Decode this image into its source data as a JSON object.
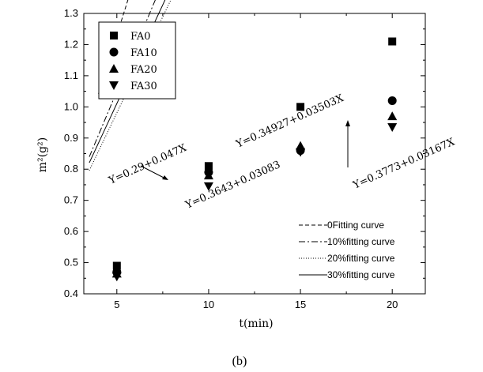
{
  "caption": "(b)",
  "chart_data": {
    "type": "scatter",
    "xlabel": "t(min)",
    "ylabel": "m²(g²)",
    "xlim": [
      3.2,
      21.8
    ],
    "ylim": [
      0.4,
      1.3
    ],
    "xticks": [
      5,
      10,
      15,
      20
    ],
    "xtick_labels": [
      "5",
      "10",
      "15",
      "20"
    ],
    "yticks": [
      0.4,
      0.5,
      0.6,
      0.7,
      0.8,
      0.9,
      1.0,
      1.1,
      1.2,
      1.3
    ],
    "ytick_labels": [
      "0.4",
      "0.5",
      "0.6",
      "0.7",
      "0.8",
      "0.9",
      "1.0",
      "1.1",
      "1.2",
      "1.3"
    ],
    "grid": false,
    "legend_position": "top-left",
    "series": [
      {
        "name": "FA0",
        "marker": "square",
        "x": [
          5,
          10,
          15,
          20
        ],
        "y": [
          0.49,
          0.81,
          1.0,
          1.21
        ]
      },
      {
        "name": "FA10",
        "marker": "circle",
        "x": [
          5,
          10,
          15,
          20
        ],
        "y": [
          0.47,
          0.79,
          0.86,
          1.02
        ]
      },
      {
        "name": "FA20",
        "marker": "triangle-up",
        "x": [
          5,
          10,
          15,
          20
        ],
        "y": [
          0.465,
          0.78,
          0.875,
          0.97
        ]
      },
      {
        "name": "FA30",
        "marker": "triangle-down",
        "x": [
          5,
          10,
          15,
          20
        ],
        "y": [
          0.455,
          0.745,
          0.855,
          0.935
        ]
      }
    ],
    "fits": [
      {
        "name": "0Fitting curve",
        "style": "dashed",
        "intercept": 0.29,
        "slope": 0.047
      },
      {
        "name": "10%fitting curve",
        "style": "dashdot",
        "intercept": 0.34927,
        "slope": 0.03503
      },
      {
        "name": "20%fitting curve",
        "style": "dotted",
        "intercept": 0.3643,
        "slope": 0.03083
      },
      {
        "name": "30%fitting curve",
        "style": "solid",
        "intercept": 0.3773,
        "slope": 0.03167
      }
    ],
    "annotations": [
      {
        "text": "Y=0.29+0.047X"
      },
      {
        "text": "Y=0.34927+0.03503X"
      },
      {
        "text": "Y=0.3643+0.03083"
      },
      {
        "text": "Y=0.3773+0.03167X"
      }
    ]
  }
}
